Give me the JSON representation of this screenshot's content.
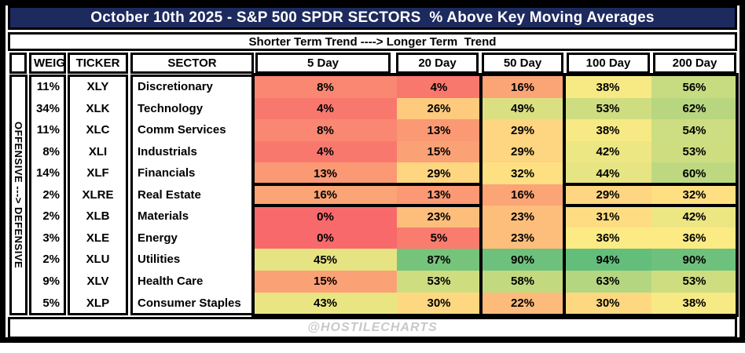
{
  "title": "October 10th 2025 - S&P 500 SPDR SECTORS  % Above Key Moving Averages",
  "subtitle": "Shorter Term Trend ----> Longer Term  Trend",
  "side_label": "OFFENSIVE ---> DEFENSIVE",
  "watermark": "@HOSTILECHARTS",
  "column_headers": {
    "weight": "WEIGHT",
    "ticker": "TICKER",
    "sector": "SECTOR"
  },
  "colors": {
    "title_bg": "#1c2a5e",
    "title_text": "#ffffff",
    "border": "#000000",
    "watermark": "#c8c8c8",
    "heat_min": "#F8696B",
    "heat_mid": "#FFEB84",
    "heat_max": "#63BE7B"
  },
  "chart_data": {
    "type": "heatmap",
    "title": "October 10th 2025 - S&P 500 SPDR SECTORS % Above Key Moving Averages",
    "subtitle": "Shorter Term Trend ----> Longer Term Trend",
    "value_unit": "%",
    "columns": [
      "5 Day",
      "20 Day",
      "50 Day",
      "100 Day",
      "200 Day"
    ],
    "color_scale": {
      "min_value": 0,
      "mid_value": 35,
      "max_value": 94
    },
    "rows": [
      {
        "weight": "11%",
        "ticker": "XLY",
        "sector": "Discretionary",
        "values": [
          8,
          4,
          16,
          38,
          56
        ]
      },
      {
        "weight": "34%",
        "ticker": "XLK",
        "sector": "Technology",
        "values": [
          4,
          26,
          49,
          53,
          62
        ]
      },
      {
        "weight": "11%",
        "ticker": "XLC",
        "sector": "Comm Services",
        "values": [
          8,
          13,
          29,
          38,
          54
        ]
      },
      {
        "weight": "8%",
        "ticker": "XLI",
        "sector": "Industrials",
        "values": [
          4,
          15,
          29,
          42,
          53
        ]
      },
      {
        "weight": "14%",
        "ticker": "XLF",
        "sector": "Financials",
        "values": [
          13,
          29,
          32,
          44,
          60
        ]
      },
      {
        "weight": "2%",
        "ticker": "XLRE",
        "sector": "Real Estate",
        "values": [
          16,
          13,
          16,
          29,
          32
        ]
      },
      {
        "weight": "2%",
        "ticker": "XLB",
        "sector": "Materials",
        "values": [
          0,
          23,
          23,
          31,
          42
        ]
      },
      {
        "weight": "3%",
        "ticker": "XLE",
        "sector": "Energy",
        "values": [
          0,
          5,
          23,
          36,
          36
        ]
      },
      {
        "weight": "2%",
        "ticker": "XLU",
        "sector": "Utilities",
        "values": [
          45,
          87,
          90,
          94,
          90
        ]
      },
      {
        "weight": "9%",
        "ticker": "XLV",
        "sector": "Health Care",
        "values": [
          15,
          53,
          58,
          63,
          53
        ]
      },
      {
        "weight": "5%",
        "ticker": "XLP",
        "sector": "Consumer Staples",
        "values": [
          43,
          30,
          22,
          30,
          38
        ]
      }
    ]
  }
}
